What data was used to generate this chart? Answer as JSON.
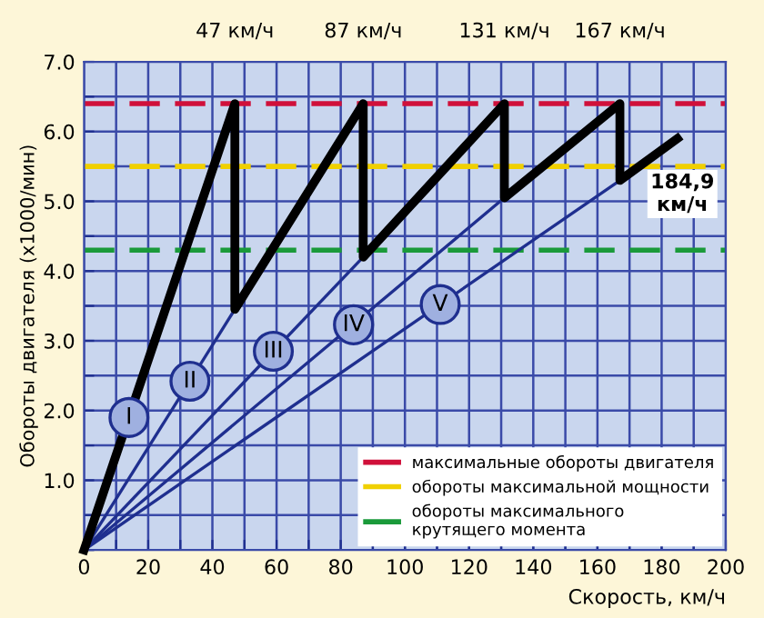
{
  "chart_data": {
    "type": "line",
    "xlabel": "Скорость, км/ч",
    "ylabel": "Обороты двигателя (x1000/мин)",
    "series": [
      {
        "color": "#1f2f8f",
        "x": [
          0,
          47
        ],
        "values": [
          0,
          3.45
        ]
      },
      {
        "color": "#1f2f8f",
        "x": [
          0,
          87
        ],
        "values": [
          0,
          4.2
        ]
      },
      {
        "color": "#1f2f8f",
        "x": [
          0,
          131
        ],
        "values": [
          0,
          5.05
        ]
      },
      {
        "color": "#1f2f8f",
        "x": [
          0,
          167
        ],
        "values": [
          0,
          5.3
        ]
      },
      {
        "color": "#000000",
        "x": [
          0,
          47,
          47,
          87,
          87,
          131,
          131,
          167,
          167,
          184.9
        ],
        "values": [
          0,
          6.4,
          3.45,
          6.4,
          4.2,
          6.4,
          5.05,
          6.4,
          5.3,
          5.9
        ]
      }
    ],
    "ref_lines": [
      {
        "axis": "y",
        "value": 6.4,
        "label": "максимальные обороты двигателя",
        "color": "#d0103a",
        "line_style": "dashed"
      },
      {
        "axis": "y",
        "value": 5.5,
        "label": "обороты максимальной мощности",
        "color": "#f0d000",
        "line_style": "dashed"
      },
      {
        "axis": "y",
        "value": 4.3,
        "label": "обороты максимального\nкрутящего момента",
        "color": "#1a9a3a",
        "line_style": "dashed"
      }
    ],
    "annotations": [
      {
        "text": "184,9\nкм/ч",
        "x": 184.9,
        "y": 5.9
      },
      {
        "text": "I",
        "x": 14,
        "y": 1.9
      },
      {
        "text": "II",
        "x": 33,
        "y": 2.42
      },
      {
        "text": "III",
        "x": 59,
        "y": 2.85
      },
      {
        "text": "IV",
        "x": 84,
        "y": 3.23
      },
      {
        "text": "V",
        "x": 111,
        "y": 3.52
      }
    ],
    "xlim": [
      0,
      200
    ],
    "ylim": [
      0,
      7.0
    ],
    "x2lim": [
      0,
      200
    ],
    "x2ticks": [
      {
        "value": 47,
        "label": "47 км/ч"
      },
      {
        "value": 87,
        "label": "87 км/ч"
      },
      {
        "value": 131,
        "label": "131 км/ч"
      },
      {
        "value": 167,
        "label": "167 км/ч"
      }
    ],
    "xticks": [
      0,
      {
        "value": 10,
        "label": null
      },
      20,
      {
        "value": 30,
        "label": null
      },
      40,
      {
        "value": 50,
        "label": null
      },
      60,
      {
        "value": 70,
        "label": null
      },
      80,
      {
        "value": 90,
        "label": null
      },
      100,
      {
        "value": 110,
        "label": null
      },
      120,
      {
        "value": 130,
        "label": null
      },
      140,
      {
        "value": 150,
        "label": null
      },
      160,
      {
        "value": 170,
        "label": null
      },
      180,
      {
        "value": 190,
        "label": null
      },
      200
    ],
    "yticks": [
      {
        "value": 0,
        "label": null
      },
      {
        "value": 0.5,
        "label": null
      },
      {
        "value": 1,
        "label": "1.0"
      },
      {
        "value": 1.5,
        "label": null
      },
      {
        "value": 2,
        "label": "2.0"
      },
      {
        "value": 2.5,
        "label": null
      },
      {
        "value": 3,
        "label": "3.0"
      },
      {
        "value": 3.5,
        "label": null
      },
      {
        "value": 4,
        "label": "4.0"
      },
      {
        "value": 4.5,
        "label": null
      },
      {
        "value": 5,
        "label": "5.0"
      },
      {
        "value": 5.5,
        "label": null
      },
      {
        "value": 6,
        "label": "6.0"
      },
      {
        "value": 6.5,
        "label": null
      },
      {
        "value": 7,
        "label": "7.0"
      }
    ],
    "grid": true,
    "legend": "bottom right",
    "marker": "none",
    "line_style": "solid"
  }
}
